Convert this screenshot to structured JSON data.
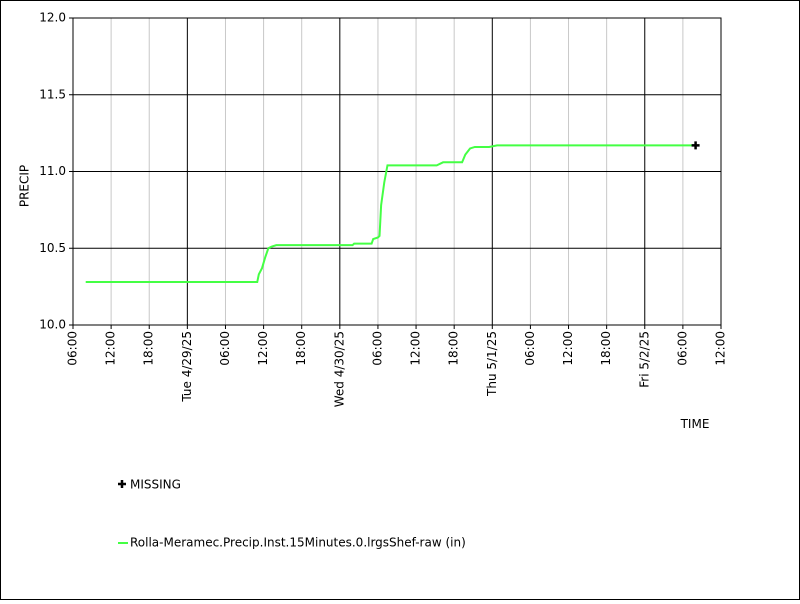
{
  "chart_data": {
    "type": "line",
    "ylabel": "PRECIP",
    "xlabel": "TIME",
    "ylim": [
      10,
      12
    ],
    "yticks": [
      {
        "value": 10,
        "label": "10.0"
      },
      10.5,
      {
        "value": 11,
        "label": "11.0"
      },
      11.5,
      {
        "value": 12,
        "label": "12.0"
      }
    ],
    "xlim": [
      "2025-04-28T06:00",
      "2025-05-02T12:00"
    ],
    "xticks": [
      {
        "value": "2025-04-28T06:00",
        "label": "06:00"
      },
      {
        "value": "2025-04-28T12:00",
        "label": "12:00"
      },
      {
        "value": "2025-04-28T18:00",
        "label": "18:00"
      },
      {
        "value": "2025-04-29T00:00",
        "label": "Tue 4/29/25"
      },
      {
        "value": "2025-04-29T06:00",
        "label": "06:00"
      },
      {
        "value": "2025-04-29T12:00",
        "label": "12:00"
      },
      {
        "value": "2025-04-29T18:00",
        "label": "18:00"
      },
      {
        "value": "2025-04-30T00:00",
        "label": "Wed 4/30/25"
      },
      {
        "value": "2025-04-30T06:00",
        "label": "06:00"
      },
      {
        "value": "2025-04-30T12:00",
        "label": "12:00"
      },
      {
        "value": "2025-04-30T18:00",
        "label": "18:00"
      },
      {
        "value": "2025-05-01T00:00",
        "label": "Thu 5/1/25"
      },
      {
        "value": "2025-05-01T06:00",
        "label": "06:00"
      },
      {
        "value": "2025-05-01T12:00",
        "label": "12:00"
      },
      {
        "value": "2025-05-01T18:00",
        "label": "18:00"
      },
      {
        "value": "2025-05-02T00:00",
        "label": "Fri 5/2/25"
      },
      {
        "value": "2025-05-02T06:00",
        "label": "06:00"
      },
      {
        "value": "2025-05-02T12:00",
        "label": "12:00"
      }
    ],
    "grid": true,
    "series": [
      {
        "name": "Rolla-Meramec.Precip.Inst.15Minutes.0.lrgsShef-raw (in)",
        "color": "#44ff44",
        "x": [
          "2025-04-28T08:00",
          "2025-04-29T11:00",
          "2025-04-29T11:15",
          "2025-04-29T11:45",
          "2025-04-29T12:15",
          "2025-04-29T12:45",
          "2025-04-29T13:15",
          "2025-04-29T14:00",
          "2025-04-30T02:00",
          "2025-04-30T02:15",
          "2025-04-30T05:00",
          "2025-04-30T05:15",
          "2025-04-30T06:00",
          "2025-04-30T06:15",
          "2025-04-30T06:30",
          "2025-04-30T07:00",
          "2025-04-30T07:30",
          "2025-04-30T15:15",
          "2025-04-30T16:15",
          "2025-04-30T19:15",
          "2025-04-30T19:45",
          "2025-04-30T20:30",
          "2025-04-30T21:15",
          "2025-04-30T23:30",
          "2025-05-01T00:45",
          "2025-05-02T08:00"
        ],
        "values": [
          10.28,
          10.28,
          10.33,
          10.37,
          10.44,
          10.5,
          10.51,
          10.52,
          10.52,
          10.53,
          10.53,
          10.56,
          10.57,
          10.58,
          10.78,
          10.93,
          11.04,
          11.04,
          11.06,
          11.06,
          11.11,
          11.15,
          11.16,
          11.16,
          11.17,
          11.17
        ]
      }
    ],
    "missing": {
      "name": "MISSING",
      "color": "#000000",
      "x": [
        "2025-05-02T08:00"
      ],
      "values": [
        11.17
      ]
    }
  }
}
